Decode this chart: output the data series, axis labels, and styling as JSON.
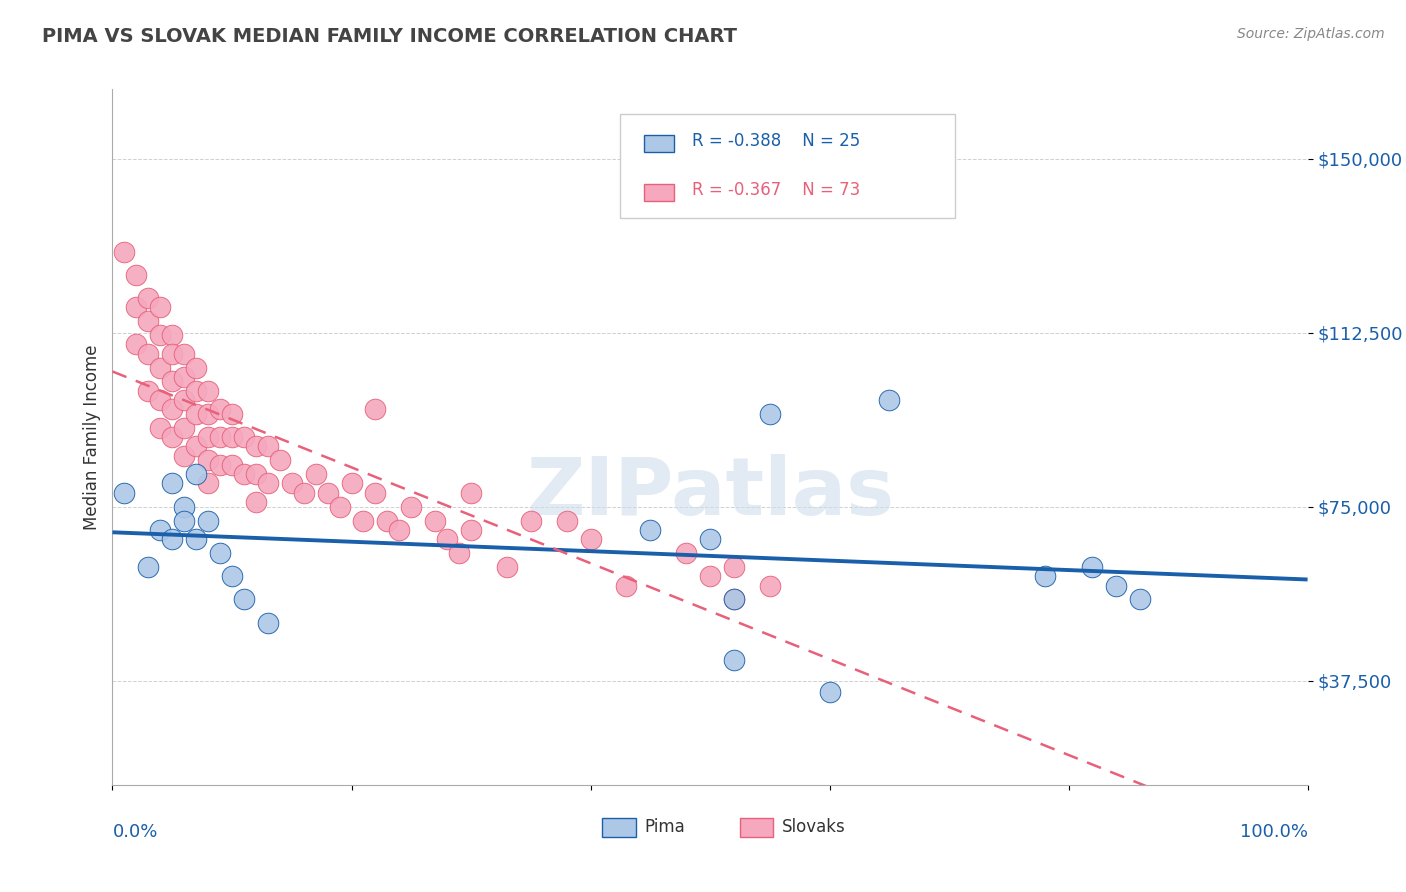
{
  "title": "PIMA VS SLOVAK MEDIAN FAMILY INCOME CORRELATION CHART",
  "source": "Source: ZipAtlas.com",
  "ylabel": "Median Family Income",
  "yticks": [
    37500,
    75000,
    112500,
    150000
  ],
  "ytick_labels": [
    "$37,500",
    "$75,000",
    "$112,500",
    "$150,000"
  ],
  "ymin": 15000,
  "ymax": 165000,
  "xmin": 0.0,
  "xmax": 1.0,
  "pima_color": "#adc8e6",
  "slovak_color": "#f5a8be",
  "pima_line_color": "#1a5faa",
  "slovak_line_color": "#e8607a",
  "watermark_color": "#c8d8ec",
  "legend_r_pima": "R = -0.388",
  "legend_n_pima": "N = 25",
  "legend_r_slovak": "R = -0.367",
  "legend_n_slovak": "N = 73",
  "pima_x": [
    0.01,
    0.03,
    0.04,
    0.05,
    0.05,
    0.06,
    0.06,
    0.07,
    0.07,
    0.08,
    0.09,
    0.1,
    0.11,
    0.13,
    0.5,
    0.52,
    0.55,
    0.65,
    0.78,
    0.82,
    0.84,
    0.86,
    0.45,
    0.52,
    0.6
  ],
  "pima_y": [
    78000,
    62000,
    70000,
    80000,
    68000,
    75000,
    72000,
    82000,
    68000,
    72000,
    65000,
    60000,
    55000,
    50000,
    68000,
    55000,
    95000,
    98000,
    60000,
    62000,
    58000,
    55000,
    70000,
    42000,
    35000
  ],
  "slovak_x": [
    0.01,
    0.02,
    0.02,
    0.02,
    0.03,
    0.03,
    0.03,
    0.03,
    0.04,
    0.04,
    0.04,
    0.04,
    0.04,
    0.05,
    0.05,
    0.05,
    0.05,
    0.05,
    0.06,
    0.06,
    0.06,
    0.06,
    0.06,
    0.07,
    0.07,
    0.07,
    0.07,
    0.08,
    0.08,
    0.08,
    0.08,
    0.08,
    0.09,
    0.09,
    0.09,
    0.1,
    0.1,
    0.1,
    0.11,
    0.11,
    0.12,
    0.12,
    0.12,
    0.13,
    0.13,
    0.14,
    0.15,
    0.16,
    0.17,
    0.18,
    0.19,
    0.2,
    0.21,
    0.22,
    0.23,
    0.24,
    0.25,
    0.27,
    0.28,
    0.29,
    0.3,
    0.33,
    0.38,
    0.4,
    0.43,
    0.48,
    0.52,
    0.55,
    0.22,
    0.3,
    0.35,
    0.5,
    0.52
  ],
  "slovak_y": [
    130000,
    125000,
    118000,
    110000,
    120000,
    115000,
    108000,
    100000,
    118000,
    112000,
    105000,
    98000,
    92000,
    112000,
    108000,
    102000,
    96000,
    90000,
    108000,
    103000,
    98000,
    92000,
    86000,
    105000,
    100000,
    95000,
    88000,
    100000,
    95000,
    90000,
    85000,
    80000,
    96000,
    90000,
    84000,
    95000,
    90000,
    84000,
    90000,
    82000,
    88000,
    82000,
    76000,
    88000,
    80000,
    85000,
    80000,
    78000,
    82000,
    78000,
    75000,
    80000,
    72000,
    78000,
    72000,
    70000,
    75000,
    72000,
    68000,
    65000,
    70000,
    62000,
    72000,
    68000,
    58000,
    65000,
    62000,
    58000,
    96000,
    78000,
    72000,
    60000,
    55000
  ]
}
